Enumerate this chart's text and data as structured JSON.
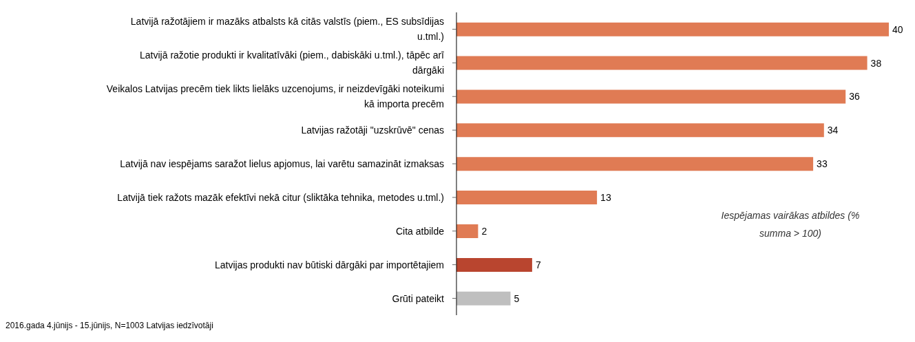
{
  "chart_data": {
    "type": "bar",
    "orientation": "horizontal",
    "categories": [
      "Latvijā ražotājiem ir mazāks atbalsts kā citās valstīs (piem., ES subsīdijas u.tml.)",
      "Latvijā ražotie produkti ir kvalitatīvāki (piem., dabiskāki u.tml.), tāpēc arī dārgāki",
      "Veikalos Latvijas precēm tiek likts lielāks uzcenojums, ir neizdevīgāki noteikumi kā importa precēm",
      "Latvijas ražotāji \"uzskrūvē\" cenas",
      "Latvijā nav iespējams saražot lielus apjomus, lai varētu samazināt izmaksas",
      "Latvijā tiek ražots mazāk efektīvi nekā citur (sliktāka tehnika, metodes u.tml.)",
      "Cita atbilde",
      "Latvijas produkti nav būtiski dārgāki par importētajiem",
      "Grūti pateikt"
    ],
    "values": [
      40,
      38,
      36,
      34,
      33,
      13,
      2,
      7,
      5
    ],
    "colors": [
      "#e07b54",
      "#e07b54",
      "#e07b54",
      "#e07b54",
      "#e07b54",
      "#e07b54",
      "#e07b54",
      "#b9452f",
      "#bfbfbf"
    ],
    "data_labels": true,
    "grid": false,
    "legend": false,
    "annotations": [
      "Iespējamas vairākas atbildes (% summa > 100)",
      "2016.gada 4.jūnijs - 15.jūnijs, N=1003 Latvijas iedzīvotāji"
    ]
  }
}
